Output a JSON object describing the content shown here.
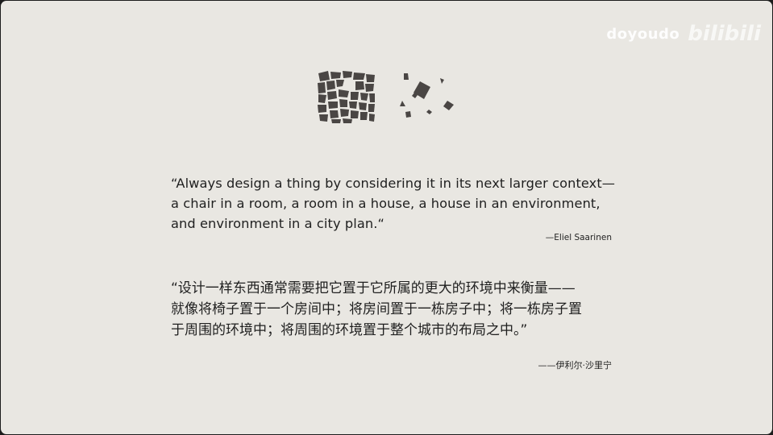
{
  "watermark": {
    "channel": "doyoudo",
    "logo": "bilibili"
  },
  "quote_en": {
    "lines": [
      "“Always design a thing by considering it in its next larger context—",
      "a chair in a room, a room in a house, a house in an environment,",
      "and environment in a city plan.“"
    ],
    "attribution": "—Eliel Saarinen"
  },
  "quote_cn": {
    "lines": [
      "“设计一样东西通常需要把它置于它所属的更大的环境中来衡量——",
      "就像将椅子置于一个房间中；将房间置于一栋房子中；将一栋房子置",
      "于周围的环境中；将周围的环境置于整个城市的布局之中。”"
    ],
    "attribution": "——伊利尔·沙里宁"
  },
  "colors": {
    "background": "#e9e7e2",
    "text": "#1f1f1f",
    "figure_fill": "#4a4644"
  },
  "figures": [
    {
      "icon": "dense-city-block-figure-ground-icon"
    },
    {
      "icon": "scattered-buildings-figure-ground-icon"
    }
  ]
}
